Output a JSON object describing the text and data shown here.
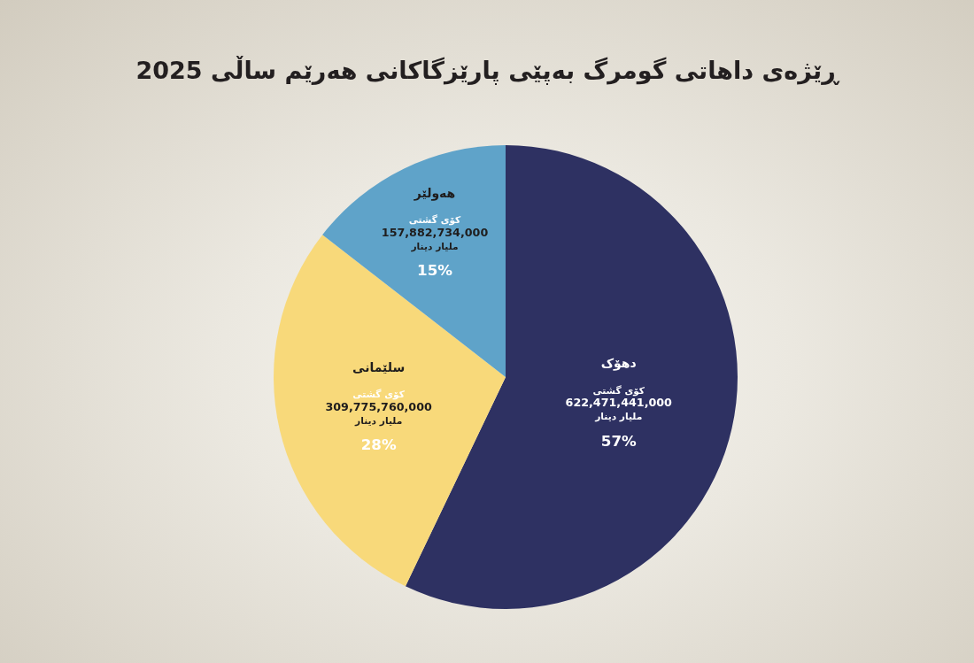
{
  "chart_data": {
    "type": "pie",
    "title": "ڕێژەی داهاتی گومرگ بەپێی پارێزگاکانی هەرێم ساڵی 2025",
    "categories": [
      "دهۆک",
      "سلێمانی",
      "هەولێر"
    ],
    "values": [
      622471441000,
      309775760000,
      157882734000
    ],
    "colors": [
      "#2e3162",
      "#f8d97a",
      "#5fa3c9"
    ],
    "value_labels": [
      "کۆی گشتی\n622,471,441,000\nملیار دینار\n57%",
      "کۆی گشتی\n309,775,760,000\nملیار دینار\n28%",
      "کۆی گشتی\n157,882,734,000\nملیار دینار\n15%"
    ]
  }
}
